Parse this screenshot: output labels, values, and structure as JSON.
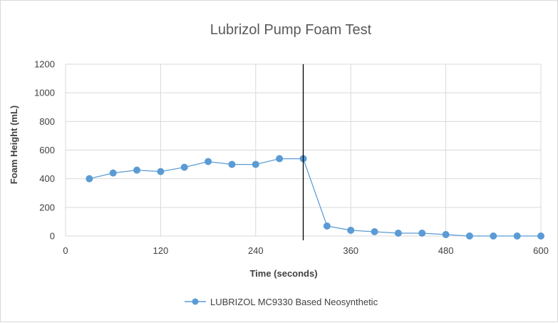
{
  "chart_data": {
    "type": "scatter",
    "title": "Lubrizol Pump Foam Test",
    "xlabel": "Time (seconds)",
    "ylabel": "Foam Height (mL)",
    "xlim": [
      0,
      600
    ],
    "ylim": [
      0,
      1200
    ],
    "x_ticks": [
      "0",
      "120",
      "240",
      "360",
      "480",
      "600"
    ],
    "y_ticks": [
      "0",
      "200",
      "400",
      "600",
      "800",
      "1000",
      "1200"
    ],
    "grid": true,
    "legend_position": "bottom",
    "marker_line": {
      "x": 300,
      "color": "#000000"
    },
    "series": [
      {
        "name": "LUBRIZOL MC9330 Based Neosynthetic",
        "color": "#5b9bd5",
        "x": [
          30,
          60,
          90,
          120,
          150,
          180,
          210,
          240,
          270,
          300,
          330,
          360,
          390,
          420,
          450,
          480,
          510,
          540,
          570,
          600
        ],
        "y": [
          400,
          440,
          460,
          450,
          480,
          520,
          500,
          500,
          540,
          540,
          70,
          40,
          30,
          20,
          20,
          10,
          0,
          0,
          0,
          0
        ]
      }
    ]
  }
}
